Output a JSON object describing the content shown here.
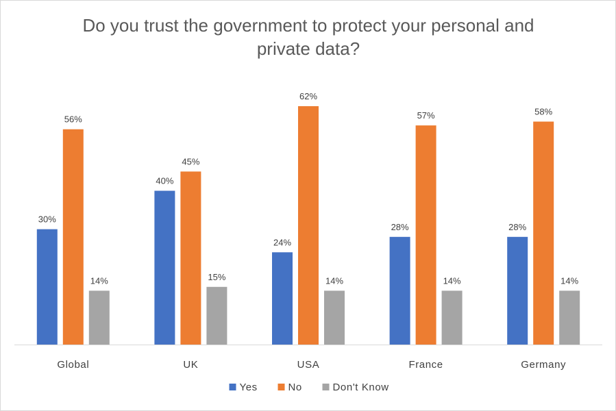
{
  "chart_data": {
    "type": "bar",
    "title_lines": [
      "Do you trust the government to protect your personal and",
      "private data?"
    ],
    "categories": [
      "Global",
      "UK",
      "USA",
      "France",
      "Germany"
    ],
    "series": [
      {
        "name": "Yes",
        "color": "#4472c4",
        "values": [
          30,
          40,
          24,
          28,
          28
        ],
        "labels": [
          "30%",
          "40%",
          "24%",
          "28%",
          "28%"
        ]
      },
      {
        "name": "No",
        "color": "#ed7d31",
        "values": [
          56,
          45,
          62,
          57,
          58
        ],
        "labels": [
          "56%",
          "45%",
          "62%",
          "57%",
          "58%"
        ]
      },
      {
        "name": "Don't Know",
        "color": "#a5a5a5",
        "values": [
          14,
          15,
          14,
          14,
          14
        ],
        "labels": [
          "14%",
          "15%",
          "14%",
          "14%",
          "14%"
        ]
      }
    ],
    "ylim": [
      0,
      65
    ],
    "grid": false,
    "legend_position": "bottom"
  }
}
